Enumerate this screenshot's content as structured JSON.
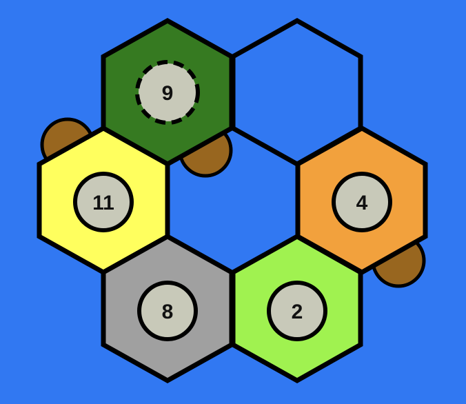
{
  "board": {
    "background_color": "#3178F2",
    "outline_color": "#000000",
    "token_color": "#C8C9B9",
    "settlement_color": "#98661F",
    "tiles": [
      {
        "name": "forest",
        "fill": "#367A21",
        "number": "9",
        "robber": true
      },
      {
        "name": "empty",
        "fill": "#3178F2",
        "number": "",
        "robber": false
      },
      {
        "name": "fields",
        "fill": "#FFFF5E",
        "number": "11",
        "robber": false
      },
      {
        "name": "hills",
        "fill": "#F2A13D",
        "number": "4",
        "robber": false
      },
      {
        "name": "mountains",
        "fill": "#A0A0A0",
        "number": "8",
        "robber": false
      },
      {
        "name": "pasture",
        "fill": "#A0F250",
        "number": "2",
        "robber": false
      }
    ]
  }
}
